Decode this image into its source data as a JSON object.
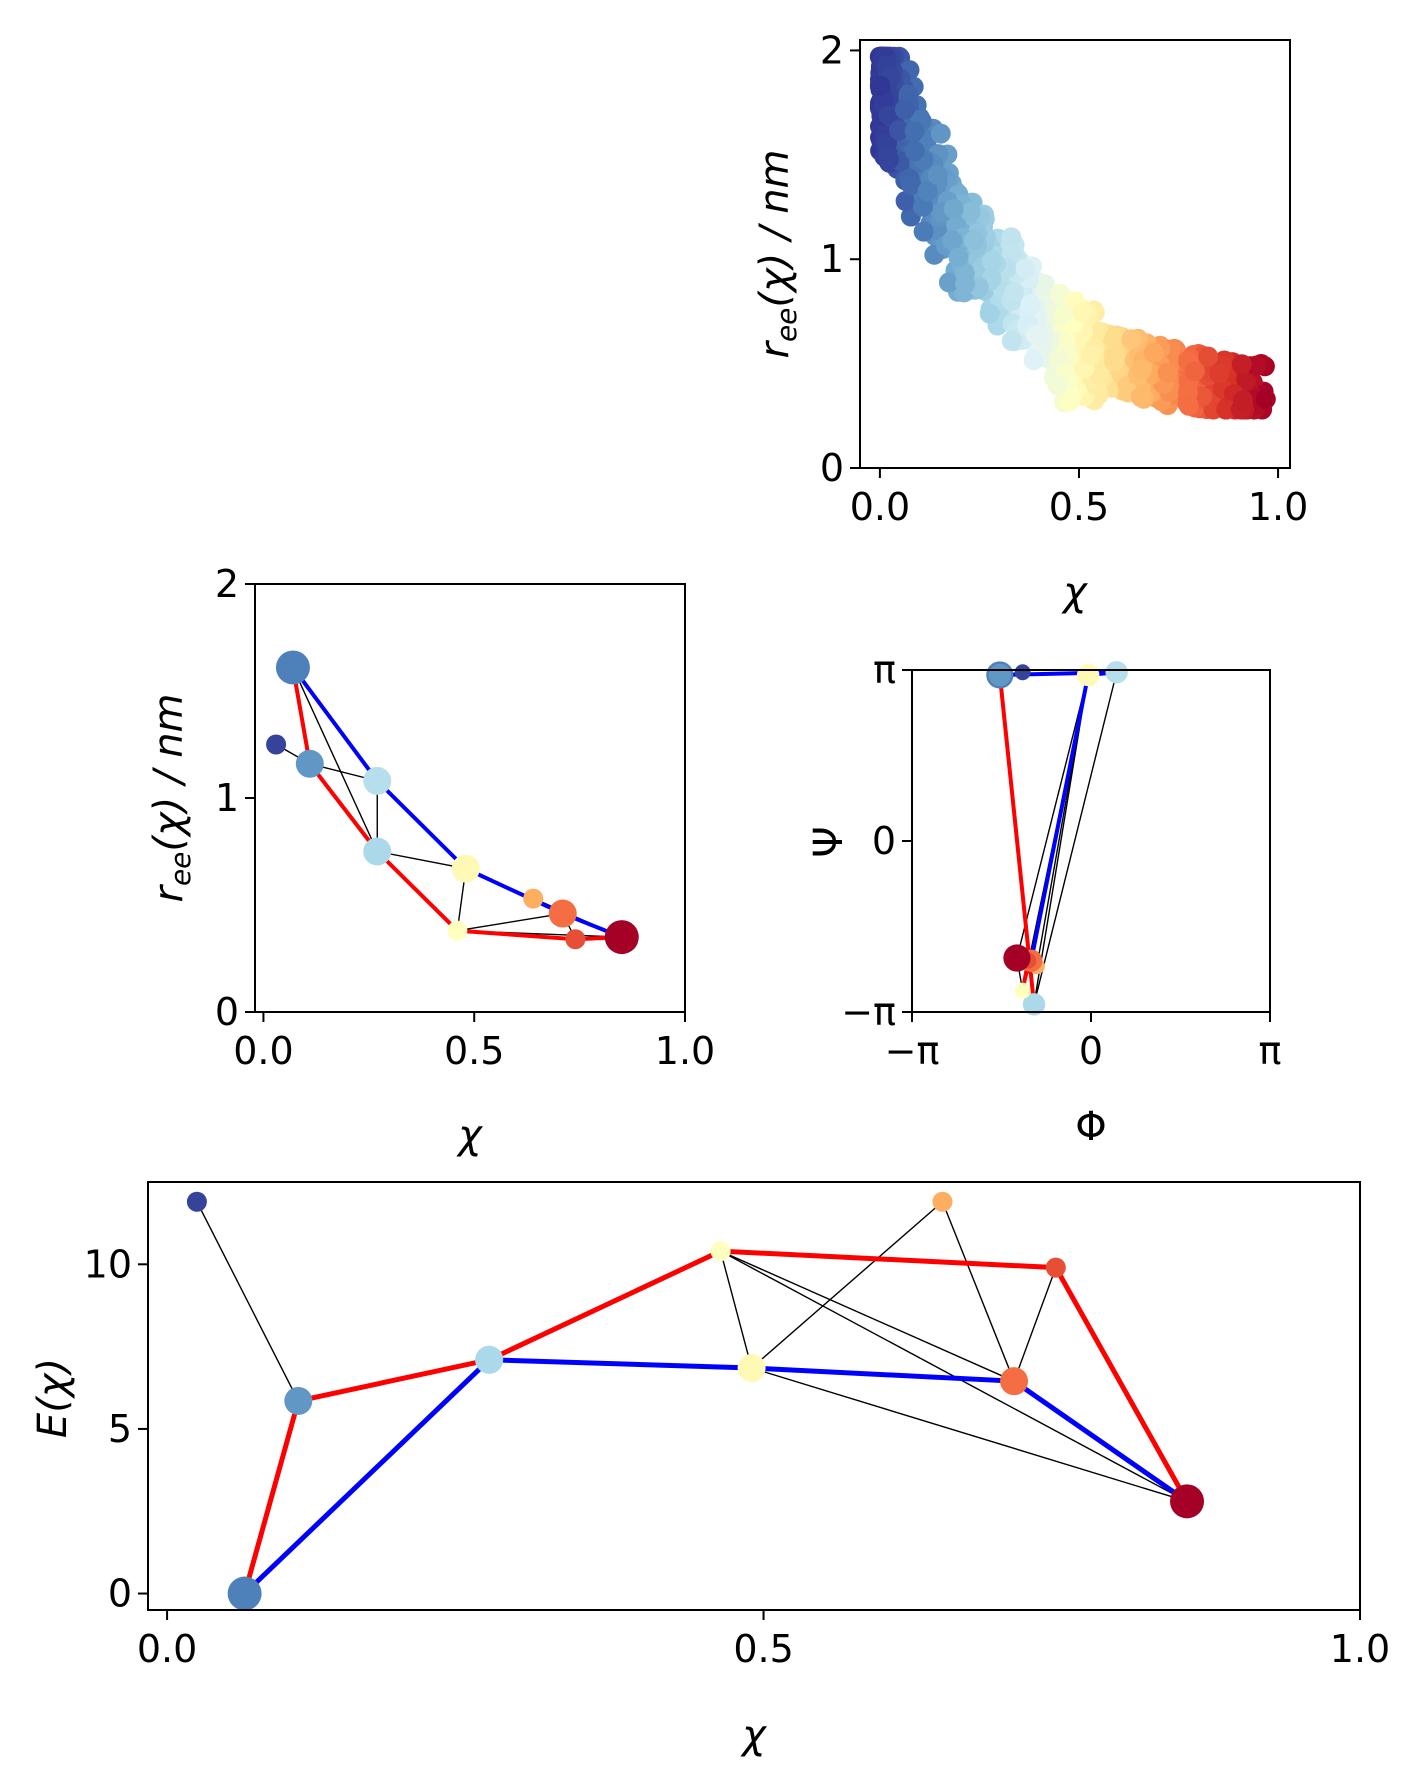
{
  "colors": {
    "low_pathway": "#ff0000",
    "high_pathway": "#0000ff",
    "network_edge": "#000000",
    "colormap": [
      "#313695",
      "#4575b4",
      "#74add1",
      "#abd9e9",
      "#e0f3f8",
      "#ffffbf",
      "#fee090",
      "#fdae61",
      "#f46d43",
      "#d73027",
      "#a50026"
    ]
  },
  "chart_data": [
    {
      "id": "panel-scatter",
      "type": "scatter",
      "title": "",
      "xlabel": "χ",
      "ylabel": "r_ee(χ) / nm",
      "xlim": [
        -0.05,
        1.03
      ],
      "ylim": [
        0,
        2.05
      ],
      "xticks": [
        {
          "v": 0.0,
          "label": "0.0"
        },
        {
          "v": 0.5,
          "label": "0.5"
        },
        {
          "v": 1.0,
          "label": "1.0"
        }
      ],
      "yticks": [
        {
          "v": 0,
          "label": "0"
        },
        {
          "v": 1,
          "label": "1"
        },
        {
          "v": 2,
          "label": "2"
        }
      ],
      "colored_by": "χ",
      "trend": [
        [
          0.0,
          1.85
        ],
        [
          0.04,
          1.72
        ],
        [
          0.08,
          1.55
        ],
        [
          0.12,
          1.38
        ],
        [
          0.17,
          1.2
        ],
        [
          0.22,
          1.05
        ],
        [
          0.3,
          0.9
        ],
        [
          0.38,
          0.75
        ],
        [
          0.45,
          0.62
        ],
        [
          0.55,
          0.52
        ],
        [
          0.65,
          0.45
        ],
        [
          0.75,
          0.4
        ],
        [
          0.85,
          0.36
        ],
        [
          0.96,
          0.35
        ]
      ],
      "n_points": 900
    },
    {
      "id": "panel-network-ree",
      "type": "scatter",
      "title": "",
      "xlabel": "χ",
      "ylabel": "r_ee(χ) / nm",
      "xlim": [
        -0.02,
        1.0
      ],
      "ylim": [
        0,
        2.0
      ],
      "xticks": [
        {
          "v": 0.0,
          "label": "0.0"
        },
        {
          "v": 0.5,
          "label": "0.5"
        },
        {
          "v": 1.0,
          "label": "1.0"
        }
      ],
      "yticks": [
        {
          "v": 0,
          "label": "0"
        },
        {
          "v": 1,
          "label": "1"
        },
        {
          "v": 2,
          "label": "2"
        }
      ],
      "nodes": [
        {
          "id": "n1",
          "x": 0.03,
          "y": 1.25,
          "c": 0.02,
          "r": "s"
        },
        {
          "id": "n2",
          "x": 0.07,
          "y": 1.61,
          "c": 0.12,
          "r": "l"
        },
        {
          "id": "n3",
          "x": 0.11,
          "y": 1.16,
          "c": 0.16,
          "r": "m"
        },
        {
          "id": "n4",
          "x": 0.27,
          "y": 1.08,
          "c": 0.32,
          "r": "m"
        },
        {
          "id": "n5",
          "x": 0.27,
          "y": 0.75,
          "c": 0.3,
          "r": "m"
        },
        {
          "id": "n6",
          "x": 0.48,
          "y": 0.67,
          "c": 0.52,
          "r": "m"
        },
        {
          "id": "n7",
          "x": 0.46,
          "y": 0.38,
          "c": 0.5,
          "r": "s"
        },
        {
          "id": "n8",
          "x": 0.64,
          "y": 0.53,
          "c": 0.7,
          "r": "s"
        },
        {
          "id": "n9",
          "x": 0.71,
          "y": 0.46,
          "c": 0.8,
          "r": "m"
        },
        {
          "id": "n10",
          "x": 0.74,
          "y": 0.34,
          "c": 0.85,
          "r": "s"
        },
        {
          "id": "n11",
          "x": 0.85,
          "y": 0.35,
          "c": 1.0,
          "r": "l"
        }
      ]
    },
    {
      "id": "panel-network-ramachandran",
      "type": "scatter",
      "title": "",
      "xlabel": "Φ",
      "ylabel": "Ψ",
      "xlim": [
        -3.14159,
        3.14159
      ],
      "ylim": [
        -3.14159,
        3.14159
      ],
      "xticks": [
        {
          "v": -3.14159,
          "label": "−π"
        },
        {
          "v": 0,
          "label": "0"
        },
        {
          "v": 3.14159,
          "label": "π"
        }
      ],
      "yticks": [
        {
          "v": -3.14159,
          "label": "−π"
        },
        {
          "v": 0,
          "label": "0"
        },
        {
          "v": 3.14159,
          "label": "π"
        }
      ],
      "nodes": [
        {
          "id": "n1",
          "x": -1.2,
          "y": 3.1
        },
        {
          "id": "n2",
          "x": -1.6,
          "y": 3.05
        },
        {
          "id": "n3",
          "x": -1.6,
          "y": 3.05
        },
        {
          "id": "n4",
          "x": 0.45,
          "y": 3.1
        },
        {
          "id": "n5",
          "x": -1.0,
          "y": -3.0
        },
        {
          "id": "n6",
          "x": -0.05,
          "y": 3.05
        },
        {
          "id": "n7",
          "x": -1.2,
          "y": -2.75
        },
        {
          "id": "n8",
          "x": -0.95,
          "y": -2.3
        },
        {
          "id": "n9",
          "x": -1.05,
          "y": -2.2
        },
        {
          "id": "n10",
          "x": -1.1,
          "y": -2.2
        },
        {
          "id": "n11",
          "x": -1.3,
          "y": -2.15
        }
      ]
    },
    {
      "id": "panel-energy",
      "type": "scatter",
      "title": "",
      "xlabel": "χ",
      "ylabel": "E(χ)",
      "xlim": [
        -0.016,
        1.0
      ],
      "ylim": [
        -0.5,
        12.5
      ],
      "xticks": [
        {
          "v": 0.0,
          "label": "0.0"
        },
        {
          "v": 0.5,
          "label": "0.5"
        },
        {
          "v": 1.0,
          "label": "1.0"
        }
      ],
      "yticks": [
        {
          "v": 0,
          "label": "0"
        },
        {
          "v": 5,
          "label": "5"
        },
        {
          "v": 10,
          "label": "10"
        }
      ],
      "nodes": [
        {
          "id": "n1",
          "x": 0.025,
          "y": 11.9
        },
        {
          "id": "n2",
          "x": 0.065,
          "y": 0.0
        },
        {
          "id": "n3",
          "x": 0.11,
          "y": 5.85
        },
        {
          "id": "n4",
          "x": 0.27,
          "y": 7.1
        },
        {
          "id": "n5",
          "x": 0.27,
          "y": 7.1
        },
        {
          "id": "n6",
          "x": 0.49,
          "y": 6.85
        },
        {
          "id": "n7",
          "x": 0.464,
          "y": 10.4
        },
        {
          "id": "n8",
          "x": 0.65,
          "y": 11.9
        },
        {
          "id": "n9",
          "x": 0.71,
          "y": 6.45
        },
        {
          "id": "n10",
          "x": 0.745,
          "y": 9.9
        },
        {
          "id": "n11",
          "x": 0.855,
          "y": 2.8
        }
      ]
    }
  ],
  "network": {
    "low_path": [
      "n2",
      "n3",
      "n5",
      "n7",
      "n10",
      "n11"
    ],
    "high_path": [
      "n2",
      "n4",
      "n6",
      "n9",
      "n11"
    ],
    "extra_edges": [
      [
        "n1",
        "n3"
      ],
      [
        "n3",
        "n4"
      ],
      [
        "n2",
        "n5"
      ],
      [
        "n4",
        "n5"
      ],
      [
        "n5",
        "n6"
      ],
      [
        "n6",
        "n7"
      ],
      [
        "n7",
        "n9"
      ],
      [
        "n6",
        "n8"
      ],
      [
        "n8",
        "n9"
      ],
      [
        "n9",
        "n10"
      ],
      [
        "n6",
        "n11"
      ],
      [
        "n7",
        "n11"
      ]
    ]
  }
}
